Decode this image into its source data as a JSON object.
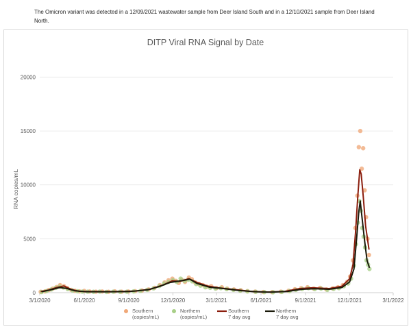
{
  "intro_text": "The Omicron variant was detected in a 12/09/2021 wastewater sample from Deer Island South and in a 12/10/2021 sample from Deer Island North.",
  "colors": {
    "southern_points": "#f0a878",
    "northern_points": "#a8cf88",
    "southern_avg": "#8b1e0e",
    "northern_avg": "#1a1a0a",
    "grid": "#e4e4e4",
    "axis_text": "#595959"
  },
  "chart_data": {
    "type": "scatter",
    "title": "DITP Viral RNA Signal by Date",
    "xlabel": "",
    "ylabel": "RNA copies/mL",
    "x_ticks": [
      "3/1/2020",
      "6/1/2020",
      "9/1/2020",
      "12/1/2020",
      "3/1/2021",
      "6/1/2021",
      "9/1/2021",
      "12/1/2021",
      "3/1/2022"
    ],
    "xlim": [
      "3/1/2020",
      "3/1/2022"
    ],
    "y_ticks": [
      0,
      5000,
      10000,
      15000,
      20000
    ],
    "ylim": [
      0,
      22000
    ],
    "grid": "horizontal",
    "legend_position": "bottom",
    "legend": [
      {
        "line1": "Southern",
        "line2": "(copies/mL)",
        "kind": "marker",
        "color": "#f0a878"
      },
      {
        "line1": "Northern",
        "line2": "(copies/mL)",
        "kind": "marker",
        "color": "#a8cf88"
      },
      {
        "line1": "Southern",
        "line2": "7 day avg",
        "kind": "line",
        "color": "#8b1e0e"
      },
      {
        "line1": "Northern",
        "line2": "7 day avg",
        "kind": "line",
        "color": "#1a1a0a"
      }
    ],
    "series": [
      {
        "name": "Southern (copies/mL)",
        "kind": "scatter",
        "points": [
          [
            "3/3/2020",
            80
          ],
          [
            "3/12/2020",
            120
          ],
          [
            "3/20/2020",
            250
          ],
          [
            "3/28/2020",
            380
          ],
          [
            "4/5/2020",
            520
          ],
          [
            "4/12/2020",
            700
          ],
          [
            "4/20/2020",
            600
          ],
          [
            "4/27/2020",
            420
          ],
          [
            "5/5/2020",
            260
          ],
          [
            "5/13/2020",
            170
          ],
          [
            "5/22/2020",
            120
          ],
          [
            "6/1/2020",
            160
          ],
          [
            "6/12/2020",
            110
          ],
          [
            "6/25/2020",
            90
          ],
          [
            "7/8/2020",
            110
          ],
          [
            "7/21/2020",
            80
          ],
          [
            "8/3/2020",
            120
          ],
          [
            "8/17/2020",
            90
          ],
          [
            "8/31/2020",
            110
          ],
          [
            "9/14/2020",
            140
          ],
          [
            "9/28/2020",
            200
          ],
          [
            "10/12/2020",
            300
          ],
          [
            "10/24/2020",
            450
          ],
          [
            "11/4/2020",
            700
          ],
          [
            "11/14/2020",
            950
          ],
          [
            "11/22/2020",
            1150
          ],
          [
            "11/30/2020",
            1300
          ],
          [
            "12/7/2020",
            1100
          ],
          [
            "12/13/2020",
            900
          ],
          [
            "12/19/2020",
            1200
          ],
          [
            "12/26/2020",
            1000
          ],
          [
            "1/3/2021",
            1400
          ],
          [
            "1/9/2021",
            1250
          ],
          [
            "1/16/2021",
            950
          ],
          [
            "1/24/2021",
            800
          ],
          [
            "2/1/2021",
            700
          ],
          [
            "2/9/2021",
            560
          ],
          [
            "2/18/2021",
            600
          ],
          [
            "3/1/2021",
            420
          ],
          [
            "3/12/2021",
            500
          ],
          [
            "3/23/2021",
            380
          ],
          [
            "4/6/2021",
            300
          ],
          [
            "4/20/2021",
            230
          ],
          [
            "5/4/2021",
            150
          ],
          [
            "5/20/2021",
            100
          ],
          [
            "6/6/2021",
            60
          ],
          [
            "6/24/2021",
            50
          ],
          [
            "7/12/2021",
            90
          ],
          [
            "7/28/2021",
            180
          ],
          [
            "8/10/2021",
            320
          ],
          [
            "8/23/2021",
            420
          ],
          [
            "9/5/2021",
            500
          ],
          [
            "9/18/2021",
            380
          ],
          [
            "10/1/2021",
            450
          ],
          [
            "10/14/2021",
            300
          ],
          [
            "10/27/2021",
            400
          ],
          [
            "11/7/2021",
            500
          ],
          [
            "11/17/2021",
            700
          ],
          [
            "11/26/2021",
            1000
          ],
          [
            "12/2/2021",
            1500
          ],
          [
            "12/8/2021",
            3000
          ],
          [
            "12/13/2021",
            6000
          ],
          [
            "12/17/2021",
            9000
          ],
          [
            "12/20/2021",
            13500
          ],
          [
            "12/23/2021",
            15000
          ],
          [
            "12/26/2021",
            11500
          ],
          [
            "12/29/2021",
            13400
          ],
          [
            "1/1/2022",
            9500
          ],
          [
            "1/4/2022",
            7000
          ],
          [
            "1/7/2022",
            5000
          ],
          [
            "1/10/2022",
            3500
          ]
        ]
      },
      {
        "name": "Northern (copies/mL)",
        "kind": "scatter",
        "points": [
          [
            "3/5/2020",
            60
          ],
          [
            "3/15/2020",
            150
          ],
          [
            "3/25/2020",
            300
          ],
          [
            "4/3/2020",
            450
          ],
          [
            "4/11/2020",
            560
          ],
          [
            "4/19/2020",
            480
          ],
          [
            "4/28/2020",
            330
          ],
          [
            "5/8/2020",
            200
          ],
          [
            "5/18/2020",
            130
          ],
          [
            "5/28/2020",
            100
          ],
          [
            "6/8/2020",
            90
          ],
          [
            "6/20/2020",
            80
          ],
          [
            "7/3/2020",
            100
          ],
          [
            "7/17/2020",
            70
          ],
          [
            "7/31/2020",
            90
          ],
          [
            "8/14/2020",
            80
          ],
          [
            "8/28/2020",
            90
          ],
          [
            "9/11/2020",
            120
          ],
          [
            "9/25/2020",
            160
          ],
          [
            "10/9/2020",
            260
          ],
          [
            "10/22/2020",
            400
          ],
          [
            "11/3/2020",
            620
          ],
          [
            "11/13/2020",
            850
          ],
          [
            "11/22/2020",
            1000
          ],
          [
            "12/1/2020",
            1150
          ],
          [
            "12/9/2020",
            1000
          ],
          [
            "12/17/2020",
            1300
          ],
          [
            "12/25/2020",
            1100
          ],
          [
            "1/2/2021",
            1200
          ],
          [
            "1/10/2021",
            1050
          ],
          [
            "1/18/2021",
            800
          ],
          [
            "1/27/2021",
            650
          ],
          [
            "2/6/2021",
            500
          ],
          [
            "2/16/2021",
            450
          ],
          [
            "2/27/2021",
            380
          ],
          [
            "3/10/2021",
            420
          ],
          [
            "3/22/2021",
            330
          ],
          [
            "4/5/2021",
            260
          ],
          [
            "4/19/2021",
            190
          ],
          [
            "5/4/2021",
            120
          ],
          [
            "5/21/2021",
            80
          ],
          [
            "6/8/2021",
            50
          ],
          [
            "6/26/2021",
            40
          ],
          [
            "7/14/2021",
            70
          ],
          [
            "7/30/2021",
            140
          ],
          [
            "8/12/2021",
            260
          ],
          [
            "8/25/2021",
            340
          ],
          [
            "9/7/2021",
            420
          ],
          [
            "9/20/2021",
            330
          ],
          [
            "10/3/2021",
            380
          ],
          [
            "10/16/2021",
            260
          ],
          [
            "10/29/2021",
            350
          ],
          [
            "11/9/2021",
            420
          ],
          [
            "11/19/2021",
            600
          ],
          [
            "11/28/2021",
            850
          ],
          [
            "12/4/2021",
            1300
          ],
          [
            "12/10/2021",
            2500
          ],
          [
            "12/14/2021",
            4500
          ],
          [
            "12/18/2021",
            6500
          ],
          [
            "12/21/2021",
            8500
          ],
          [
            "12/24/2021",
            7600
          ],
          [
            "12/27/2021",
            6000
          ],
          [
            "12/30/2021",
            5200
          ],
          [
            "1/2/2022",
            4200
          ],
          [
            "1/5/2022",
            3000
          ],
          [
            "1/8/2022",
            2600
          ],
          [
            "1/11/2022",
            2200
          ]
        ]
      },
      {
        "name": "Southern 7 day avg",
        "kind": "line",
        "points": [
          [
            "3/3/2020",
            100
          ],
          [
            "3/20/2020",
            250
          ],
          [
            "4/5/2020",
            480
          ],
          [
            "4/20/2020",
            620
          ],
          [
            "5/5/2020",
            300
          ],
          [
            "5/22/2020",
            130
          ],
          [
            "6/15/2020",
            110
          ],
          [
            "8/1/2020",
            100
          ],
          [
            "9/15/2020",
            150
          ],
          [
            "10/15/2020",
            320
          ],
          [
            "11/10/2020",
            700
          ],
          [
            "11/30/2020",
            1100
          ],
          [
            "12/15/2020",
            1050
          ],
          [
            "1/3/2021",
            1300
          ],
          [
            "1/20/2021",
            950
          ],
          [
            "2/10/2021",
            620
          ],
          [
            "3/5/2021",
            450
          ],
          [
            "4/10/2021",
            280
          ],
          [
            "5/10/2021",
            130
          ],
          [
            "6/15/2021",
            60
          ],
          [
            "7/20/2021",
            120
          ],
          [
            "8/20/2021",
            380
          ],
          [
            "9/15/2021",
            450
          ],
          [
            "10/20/2021",
            380
          ],
          [
            "11/15/2021",
            600
          ],
          [
            "12/1/2021",
            1300
          ],
          [
            "12/8/2021",
            2600
          ],
          [
            "12/13/2021",
            5500
          ],
          [
            "12/18/2021",
            9000
          ],
          [
            "12/22/2021",
            11400
          ],
          [
            "12/25/2021",
            11000
          ],
          [
            "12/29/2021",
            9000
          ],
          [
            "1/3/2022",
            6200
          ],
          [
            "1/10/2022",
            4000
          ]
        ]
      },
      {
        "name": "Northern 7 day avg",
        "kind": "line",
        "points": [
          [
            "3/5/2020",
            80
          ],
          [
            "3/25/2020",
            280
          ],
          [
            "4/11/2020",
            480
          ],
          [
            "4/25/2020",
            400
          ],
          [
            "5/12/2020",
            180
          ],
          [
            "6/5/2020",
            90
          ],
          [
            "7/15/2020",
            80
          ],
          [
            "9/1/2020",
            100
          ],
          [
            "10/10/2020",
            260
          ],
          [
            "11/5/2020",
            600
          ],
          [
            "11/25/2020",
            950
          ],
          [
            "12/10/2020",
            1050
          ],
          [
            "12/25/2020",
            1150
          ],
          [
            "1/5/2021",
            1250
          ],
          [
            "1/20/2021",
            850
          ],
          [
            "2/15/2021",
            500
          ],
          [
            "3/15/2021",
            380
          ],
          [
            "4/15/2021",
            210
          ],
          [
            "5/20/2021",
            90
          ],
          [
            "6/20/2021",
            45
          ],
          [
            "7/25/2021",
            110
          ],
          [
            "8/25/2021",
            320
          ],
          [
            "9/20/2021",
            360
          ],
          [
            "10/20/2021",
            320
          ],
          [
            "11/15/2021",
            480
          ],
          [
            "12/1/2021",
            1000
          ],
          [
            "12/10/2021",
            2200
          ],
          [
            "12/15/2021",
            4800
          ],
          [
            "12/20/2021",
            7500
          ],
          [
            "12/23/2021",
            8500
          ],
          [
            "12/27/2021",
            6800
          ],
          [
            "1/1/2022",
            4800
          ],
          [
            "1/6/2022",
            3000
          ],
          [
            "1/11/2022",
            2300
          ]
        ]
      }
    ]
  }
}
